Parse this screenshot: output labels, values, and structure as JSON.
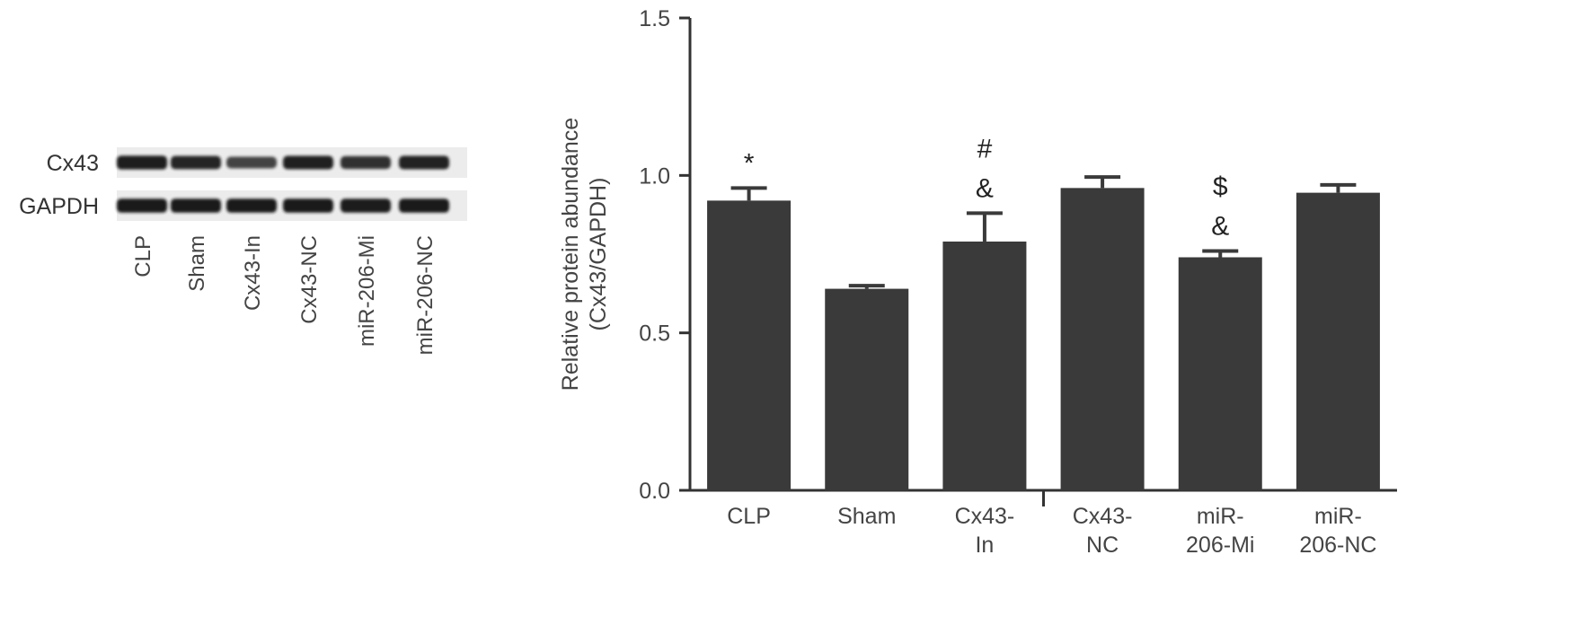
{
  "blot": {
    "rows": [
      {
        "label": "Cx43",
        "band_intensity": [
          0.92,
          0.84,
          0.62,
          0.88,
          0.78,
          0.86
        ]
      },
      {
        "label": "GAPDH",
        "band_intensity": [
          0.95,
          0.95,
          0.95,
          0.95,
          0.93,
          0.95
        ]
      }
    ],
    "lanes": [
      "CLP",
      "Sham",
      "Cx43-In",
      "Cx43-NC",
      "miR-206-Mi",
      "miR-206-NC"
    ]
  },
  "chart_data": {
    "type": "bar",
    "ylabel_line1": "Relative protein abundance",
    "ylabel_line2": "(Cx43/GAPDH)",
    "ylim": [
      0,
      1.5
    ],
    "yticks": [
      "0.0",
      "0.5",
      "1.0",
      "1.5"
    ],
    "categories": [
      [
        "CLP"
      ],
      [
        "Sham"
      ],
      [
        "Cx43-",
        "In"
      ],
      [
        "Cx43-",
        "NC"
      ],
      [
        "miR-",
        "206-Mi"
      ],
      [
        "miR-",
        "206-NC"
      ]
    ],
    "values": [
      0.92,
      0.64,
      0.79,
      0.96,
      0.74,
      0.945
    ],
    "errors": [
      0.04,
      0.01,
      0.09,
      0.035,
      0.02,
      0.025
    ],
    "annotations": [
      [
        "*"
      ],
      [],
      [
        "#",
        "&"
      ],
      [],
      [
        "$",
        "&"
      ],
      []
    ],
    "bar_color": "#3a3a3a",
    "axis_color": "#333333",
    "text_color": "#444444"
  }
}
